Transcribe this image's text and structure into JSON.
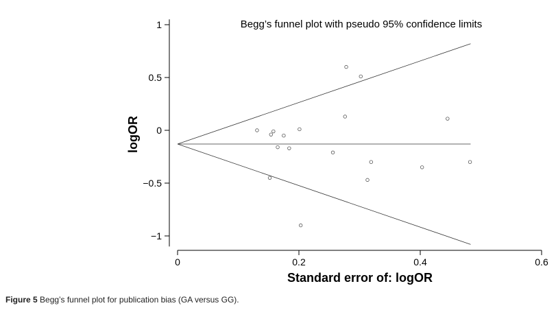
{
  "chart_data": {
    "type": "scatter",
    "title": "Begg’s funnel plot with pseudo 95% confidence limits",
    "xlabel": "Standard error of: logOR",
    "ylabel": "logOR",
    "xlim": [
      0,
      0.6
    ],
    "ylim": [
      -1.1,
      1.05
    ],
    "x_ticks": [
      {
        "value": 0,
        "label": "0"
      },
      {
        "value": 0.2,
        "label": "0.2"
      },
      {
        "value": 0.4,
        "label": "0.4"
      },
      {
        "value": 0.6,
        "label": "0.6"
      }
    ],
    "y_ticks": [
      {
        "value": 1,
        "label": "1"
      },
      {
        "value": 0.5,
        "label": "0.5"
      },
      {
        "value": 0,
        "label": "0"
      },
      {
        "value": -0.5,
        "label": "−0.5"
      },
      {
        "value": -1,
        "label": "−1"
      }
    ],
    "pooled_logOR": -0.13,
    "funnel": {
      "se_max": 0.483,
      "upper_at_max": 0.82,
      "lower_at_max": -1.08
    },
    "points": [
      {
        "x": 0.131,
        "y": 0.0
      },
      {
        "x": 0.152,
        "y": -0.45
      },
      {
        "x": 0.154,
        "y": -0.04
      },
      {
        "x": 0.158,
        "y": -0.01
      },
      {
        "x": 0.165,
        "y": -0.16
      },
      {
        "x": 0.175,
        "y": -0.05
      },
      {
        "x": 0.184,
        "y": -0.17
      },
      {
        "x": 0.201,
        "y": 0.01
      },
      {
        "x": 0.203,
        "y": -0.9
      },
      {
        "x": 0.256,
        "y": -0.21
      },
      {
        "x": 0.276,
        "y": 0.13
      },
      {
        "x": 0.278,
        "y": 0.6
      },
      {
        "x": 0.302,
        "y": 0.51
      },
      {
        "x": 0.313,
        "y": -0.47
      },
      {
        "x": 0.319,
        "y": -0.3
      },
      {
        "x": 0.403,
        "y": -0.35
      },
      {
        "x": 0.445,
        "y": 0.11
      },
      {
        "x": 0.482,
        "y": -0.3
      }
    ]
  },
  "caption": {
    "label": "Figure 5",
    "text": " Begg’s funnel plot for publication bias (GA versus GG)."
  }
}
